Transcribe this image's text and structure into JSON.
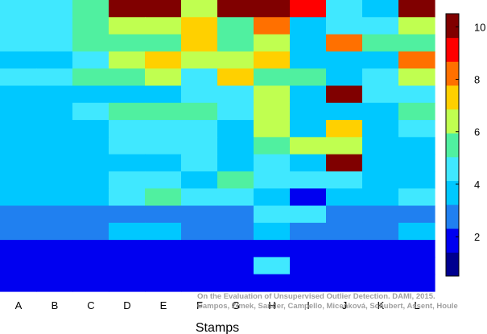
{
  "chart_data": {
    "type": "heatmap",
    "title": "",
    "xlabel": "Stamps",
    "ylabel": "",
    "x_categories": [
      "A",
      "B",
      "C",
      "D",
      "E",
      "F",
      "G",
      "H",
      "I",
      "J",
      "K",
      "L"
    ],
    "rows_top_to_bottom": [
      [
        4,
        4,
        5,
        10,
        10,
        6,
        10,
        10,
        9,
        4,
        3,
        10
      ],
      [
        4,
        4,
        5,
        6,
        6,
        7,
        5,
        8,
        3,
        4,
        4,
        6
      ],
      [
        4,
        4,
        5,
        5,
        5,
        7,
        5,
        6,
        3,
        8,
        5,
        5
      ],
      [
        3,
        3,
        4,
        6,
        7,
        6,
        6,
        7,
        3,
        3,
        3,
        8
      ],
      [
        4,
        4,
        5,
        5,
        6,
        4,
        7,
        5,
        5,
        3,
        4,
        6
      ],
      [
        3,
        3,
        3,
        3,
        3,
        4,
        4,
        6,
        3,
        10,
        4,
        4
      ],
      [
        3,
        3,
        4,
        5,
        5,
        5,
        4,
        6,
        3,
        3,
        3,
        5
      ],
      [
        3,
        3,
        3,
        4,
        4,
        4,
        3,
        6,
        3,
        7,
        3,
        4
      ],
      [
        3,
        3,
        3,
        4,
        4,
        4,
        3,
        5,
        6,
        6,
        3,
        3
      ],
      [
        3,
        3,
        3,
        3,
        3,
        4,
        3,
        4,
        3,
        10,
        3,
        3
      ],
      [
        3,
        3,
        3,
        4,
        4,
        3,
        5,
        4,
        4,
        4,
        3,
        3
      ],
      [
        3,
        3,
        3,
        4,
        5,
        4,
        4,
        3,
        1,
        3,
        3,
        4
      ],
      [
        2,
        2,
        2,
        2,
        2,
        2,
        2,
        4,
        4,
        2,
        2,
        2
      ],
      [
        2,
        2,
        2,
        3,
        3,
        2,
        2,
        3,
        2,
        2,
        2,
        3
      ],
      [
        1,
        1,
        1,
        1,
        1,
        1,
        1,
        1,
        1,
        1,
        1,
        1
      ],
      [
        1,
        1,
        1,
        1,
        1,
        1,
        1,
        4,
        1,
        1,
        1,
        1
      ],
      [
        1,
        1,
        1,
        1,
        1,
        1,
        1,
        1,
        1,
        1,
        1,
        1
      ]
    ],
    "colorbar": {
      "min": 0.5,
      "max": 10.5,
      "ticks": [
        2,
        4,
        6,
        8,
        10
      ]
    },
    "colormap": [
      "#00008f",
      "#0000f0",
      "#2080f0",
      "#00c8ff",
      "#40e8ff",
      "#50f0a0",
      "#c0ff50",
      "#ffd000",
      "#ff7000",
      "#ff0000",
      "#800000"
    ],
    "grid": false,
    "legend": "colorbar-right"
  },
  "watermark": {
    "line1": "On the Evaluation of Unsupervised Outlier Detection. DAMI, 2015.",
    "line2": "Campos, Zimek, Sander, Campello, Micenková, Schubert, Assent, Houle"
  }
}
